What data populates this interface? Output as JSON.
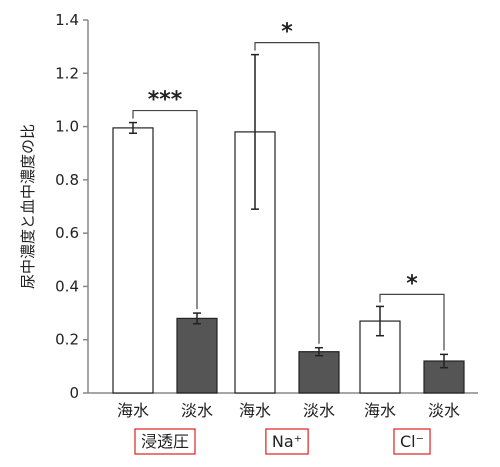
{
  "chart_data": {
    "type": "bar",
    "ylabel": "尿中濃度と血中濃度の比",
    "ylim": [
      0,
      1.4
    ],
    "yticks": [
      "0",
      "0.2",
      "0.4",
      "0.6",
      "0.8",
      "1.0",
      "1.2",
      "1.4"
    ],
    "groups": [
      {
        "label": "浸透圧",
        "bars": [
          {
            "label": "海水",
            "value": 0.995,
            "err": 0.02,
            "fill": "#ffffff"
          },
          {
            "label": "淡水",
            "value": 0.28,
            "err": 0.02,
            "fill": "#555555"
          }
        ],
        "significance": "***"
      },
      {
        "label": "Na⁺",
        "bars": [
          {
            "label": "海水",
            "value": 0.98,
            "err": 0.29,
            "fill": "#ffffff"
          },
          {
            "label": "淡水",
            "value": 0.155,
            "err": 0.015,
            "fill": "#555555"
          }
        ],
        "significance": "*"
      },
      {
        "label": "Cl⁻",
        "bars": [
          {
            "label": "海水",
            "value": 0.27,
            "err": 0.055,
            "fill": "#ffffff"
          },
          {
            "label": "淡水",
            "value": 0.12,
            "err": 0.025,
            "fill": "#555555"
          }
        ],
        "significance": "*"
      }
    ],
    "grid": false,
    "legend": "none",
    "colors": {
      "seawater_bar": "#ffffff",
      "freshwater_bar": "#555555",
      "axis": "#888888",
      "group_box": "#e02020"
    }
  }
}
